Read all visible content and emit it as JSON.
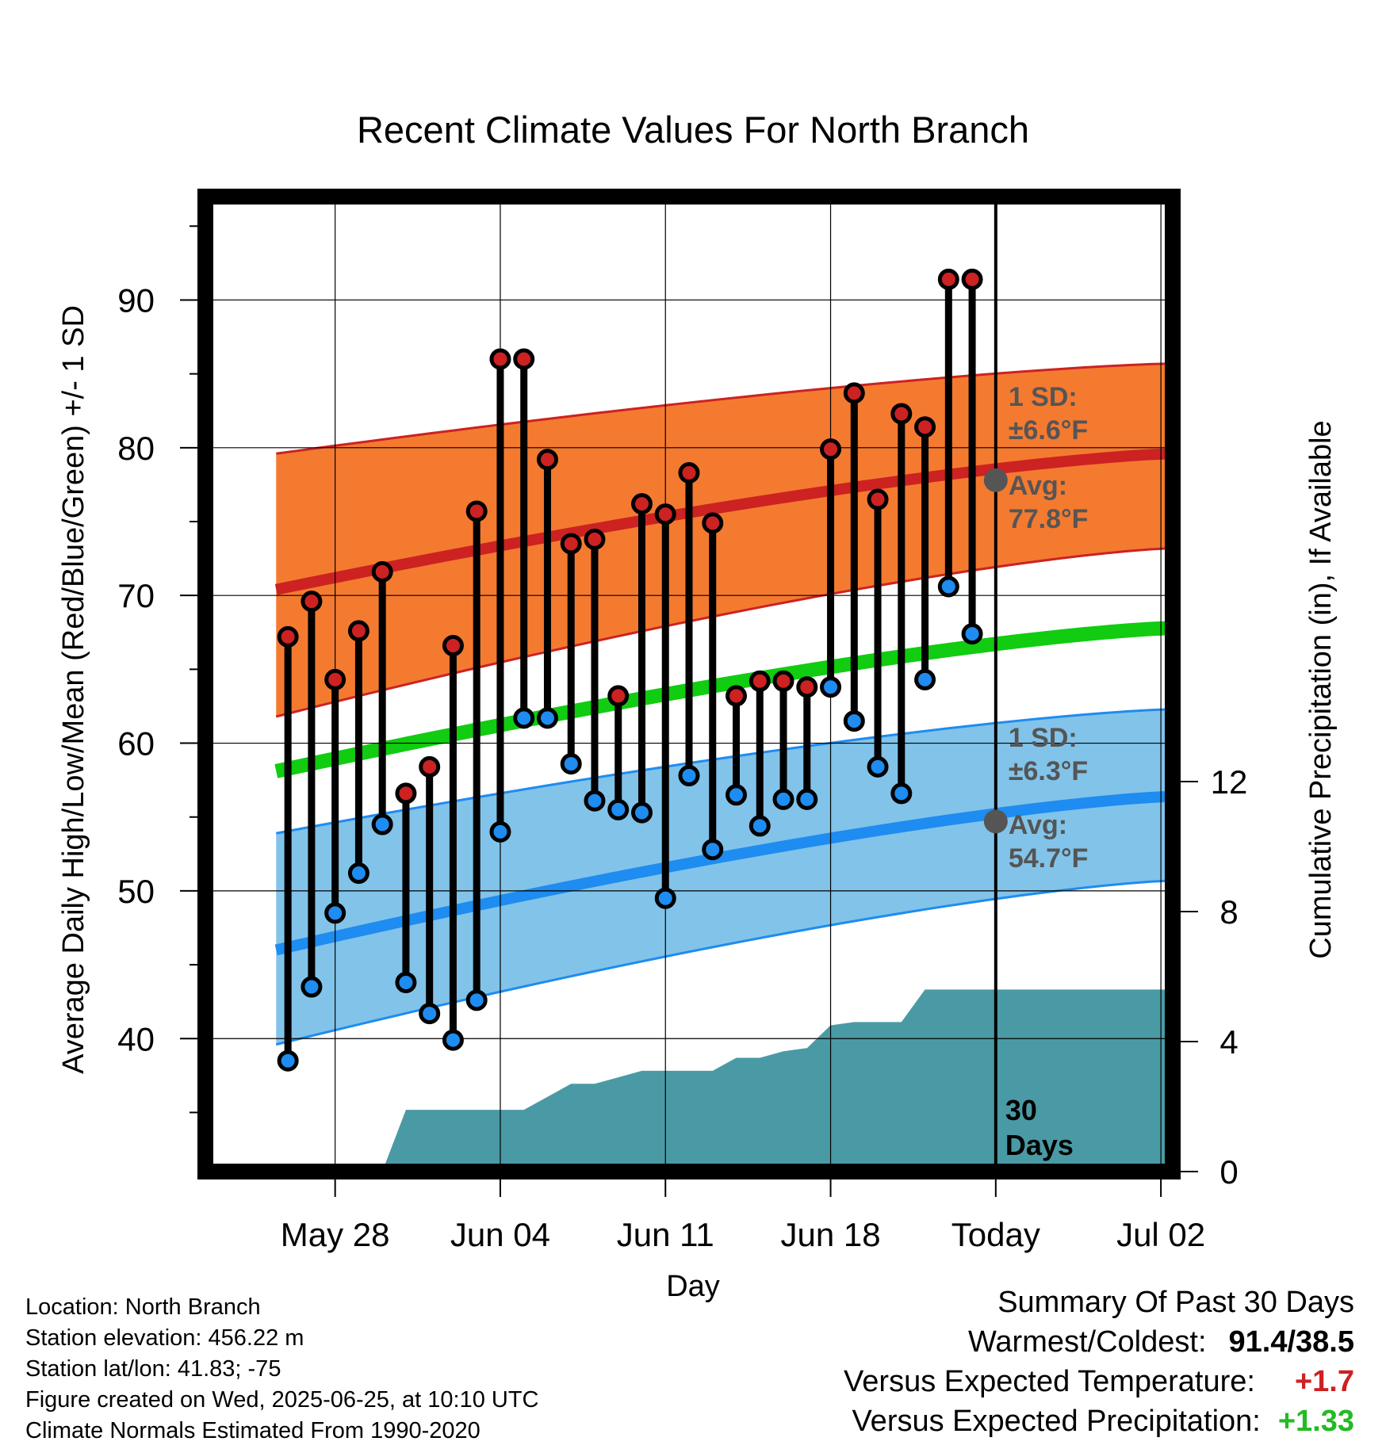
{
  "chart_data": {
    "type": "line",
    "title": "Recent Climate Values For North Branch",
    "xlabel": "Day",
    "ylabel": "Average Daily High/Low/Mean (Red/Blue/Green) +/- 1 SD",
    "y2label": "Cumulative Precipitation (in), If Available",
    "ylim": [
      31,
      97
    ],
    "y2lim": [
      0,
      30
    ],
    "xlim": [
      -1.5,
      39.5
    ],
    "x_tick_labels": [
      {
        "day": 4,
        "label": "May 28"
      },
      {
        "day": 11,
        "label": "Jun 04"
      },
      {
        "day": 18,
        "label": "Jun 11"
      },
      {
        "day": 25,
        "label": "Jun 18"
      },
      {
        "day": 32,
        "label": "Today"
      },
      {
        "day": 39,
        "label": "Jul 02"
      }
    ],
    "y_ticks": [
      40,
      50,
      60,
      70,
      80,
      90
    ],
    "y2_ticks": [
      0,
      4,
      8,
      12
    ],
    "grid": true,
    "today_day": 32,
    "period_label": "30 Days",
    "colors": {
      "high": "#cc2222",
      "high_band": "#f47a30",
      "low": "#1e8cf0",
      "low_band": "#82c3e9",
      "mean": "#11cc11",
      "precip": "#4a9aa5",
      "avg_marker": "#555555"
    },
    "series": [
      {
        "name": "High",
        "x": [
          2,
          3,
          4,
          5,
          6,
          7,
          8,
          9,
          10,
          11,
          12,
          13,
          14,
          15,
          16,
          17,
          18,
          19,
          20,
          21,
          22,
          23,
          24,
          25,
          26,
          27,
          28,
          29,
          30,
          31
        ],
        "values": [
          67.2,
          69.6,
          64.3,
          67.6,
          71.6,
          56.6,
          58.4,
          66.6,
          75.7,
          86.0,
          86.0,
          79.2,
          73.5,
          73.8,
          63.2,
          76.2,
          75.5,
          78.3,
          74.9,
          63.2,
          64.2,
          64.2,
          63.8,
          79.9,
          83.7,
          76.5,
          82.3,
          81.4,
          91.4,
          91.4
        ]
      },
      {
        "name": "Low",
        "x": [
          2,
          3,
          4,
          5,
          6,
          7,
          8,
          9,
          10,
          11,
          12,
          13,
          14,
          15,
          16,
          17,
          18,
          19,
          20,
          21,
          22,
          23,
          24,
          25,
          26,
          27,
          28,
          29,
          30,
          31
        ],
        "values": [
          38.5,
          43.5,
          48.5,
          51.2,
          54.5,
          43.8,
          41.7,
          39.9,
          42.6,
          54.0,
          61.7,
          61.7,
          58.6,
          56.1,
          55.5,
          55.3,
          49.5,
          57.8,
          52.8,
          56.5,
          54.4,
          56.2,
          56.2,
          63.8,
          61.5,
          58.4,
          56.6,
          64.3,
          70.6,
          67.4
        ]
      },
      {
        "name": "Normal High",
        "x": [
          1.5,
          39.5
        ],
        "values": [
          70.4,
          79.6
        ]
      },
      {
        "name": "Normal High +1 SD",
        "x": [
          1.5,
          39.5
        ],
        "values": [
          79.6,
          85.7
        ]
      },
      {
        "name": "Normal High -1 SD",
        "x": [
          1.5,
          39.5
        ],
        "values": [
          61.8,
          73.2
        ]
      },
      {
        "name": "Normal Mean",
        "x": [
          1.5,
          39.5
        ],
        "values": [
          58.1,
          67.8
        ]
      },
      {
        "name": "Normal Low",
        "x": [
          1.5,
          39.5
        ],
        "values": [
          46.0,
          56.4
        ]
      },
      {
        "name": "Normal Low +1 SD",
        "x": [
          1.5,
          39.5
        ],
        "values": [
          53.9,
          62.3
        ]
      },
      {
        "name": "Normal Low -1 SD",
        "x": [
          1.5,
          39.5
        ],
        "values": [
          39.6,
          50.7
        ]
      },
      {
        "name": "Cumulative Precipitation",
        "x": [
          6,
          7,
          8,
          9,
          10,
          11,
          12,
          13,
          14,
          15,
          16,
          17,
          18,
          19,
          20,
          21,
          22,
          23,
          24,
          25,
          26,
          27,
          28,
          29,
          30,
          31,
          32,
          33,
          34,
          35,
          36,
          37,
          38,
          39,
          39.5
        ],
        "values": [
          0,
          1.9,
          1.9,
          1.9,
          1.9,
          1.9,
          1.9,
          2.3,
          2.7,
          2.7,
          2.9,
          3.1,
          3.1,
          3.1,
          3.1,
          3.5,
          3.5,
          3.7,
          3.8,
          4.5,
          4.6,
          4.6,
          4.6,
          5.6,
          5.6,
          5.6,
          5.6,
          5.6,
          5.6,
          5.6,
          5.6,
          5.6,
          5.6,
          5.6,
          5.6
        ]
      }
    ],
    "annotations": {
      "high": {
        "day": 32,
        "value": 77.8,
        "sd_label": "1 SD:",
        "sd_value": "±6.6°F",
        "avg_label": "Avg:",
        "avg_value": "77.8°F"
      },
      "low": {
        "day": 32,
        "value": 54.7,
        "sd_label": "1 SD:",
        "sd_value": "±6.3°F",
        "avg_label": "Avg:",
        "avg_value": "54.7°F"
      }
    }
  },
  "info": {
    "location": "Location: North Branch",
    "elevation": "Station elevation: 456.22 m",
    "latlon": "Station lat/lon: 41.83; -75",
    "created": "Figure created on Wed, 2025-06-25, at 10:10 UTC",
    "normals": "Climate Normals Estimated From 1990-2020"
  },
  "summary": {
    "heading": "Summary Of Past 30 Days",
    "warmest_label": "Warmest/Coldest:",
    "warmest_value": "91.4/38.5",
    "temp_label": "Versus Expected Temperature:",
    "temp_value": "+1.7",
    "temp_color": "#cc2222",
    "precip_label": "Versus Expected Precipitation:",
    "precip_value": "+1.33",
    "precip_color": "#22bb22"
  }
}
